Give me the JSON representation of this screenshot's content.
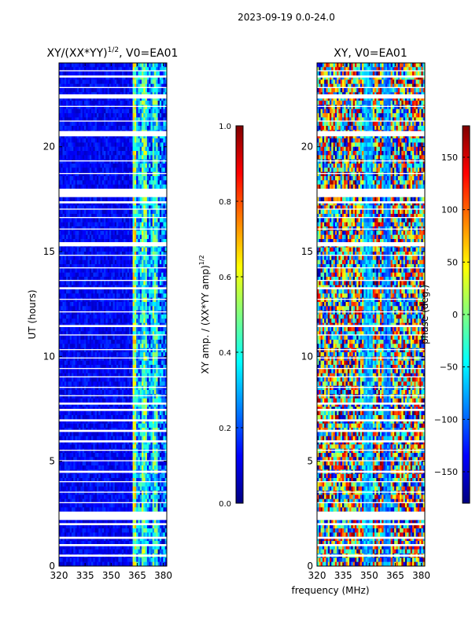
{
  "suptitle": "2023-09-19 0.0-24.0",
  "chart_data": [
    {
      "type": "heatmap",
      "title": "XY/(XX*YY)",
      "title_exp": "1/2",
      "title_suffix": ", V0=EA01",
      "xlabel": "",
      "ylabel": "UT (hours)",
      "xlim": [
        320,
        382
      ],
      "ylim": [
        0,
        24
      ],
      "xticks": [
        320,
        335,
        350,
        365,
        380
      ],
      "yticks": [
        0,
        5,
        10,
        15,
        20
      ],
      "colorbar": {
        "label": "XY amp. / (XX*YY amp)",
        "label_exp": "1/2",
        "range": [
          0.0,
          1.0
        ],
        "ticks": [
          "0.0",
          "0.2",
          "0.4",
          "0.6",
          "0.8",
          "1.0"
        ],
        "tick_values": [
          0.0,
          0.2,
          0.4,
          0.6,
          0.8,
          1.0
        ]
      },
      "flagged_time_gaps_hours": [
        [
          0.45,
          0.55
        ],
        [
          0.95,
          1.05
        ],
        [
          1.3,
          1.4
        ],
        [
          1.95,
          2.05
        ],
        [
          2.2,
          2.6
        ],
        [
          3.0,
          3.05
        ],
        [
          3.5,
          3.55
        ],
        [
          4.0,
          4.05
        ],
        [
          4.45,
          4.55
        ],
        [
          5.0,
          5.05
        ],
        [
          5.5,
          5.55
        ],
        [
          5.9,
          6.0
        ],
        [
          6.4,
          6.5
        ],
        [
          6.9,
          7.0
        ],
        [
          7.4,
          7.5
        ],
        [
          7.7,
          7.8
        ],
        [
          8.1,
          8.15
        ],
        [
          8.5,
          8.55
        ],
        [
          9.0,
          9.05
        ],
        [
          9.4,
          9.45
        ],
        [
          9.9,
          9.95
        ],
        [
          10.3,
          10.35
        ],
        [
          11.0,
          11.05
        ],
        [
          11.4,
          11.5
        ],
        [
          12.1,
          12.15
        ],
        [
          12.7,
          12.75
        ],
        [
          13.2,
          13.3
        ],
        [
          13.6,
          13.65
        ],
        [
          14.2,
          14.25
        ],
        [
          14.8,
          14.85
        ],
        [
          15.25,
          15.45
        ],
        [
          16.05,
          16.1
        ],
        [
          16.6,
          16.65
        ],
        [
          17.0,
          17.05
        ],
        [
          17.3,
          17.4
        ],
        [
          17.6,
          18.0
        ],
        [
          18.7,
          18.75
        ],
        [
          19.3,
          19.35
        ],
        [
          20.5,
          20.75
        ],
        [
          21.2,
          21.25
        ],
        [
          21.9,
          21.95
        ],
        [
          22.3,
          22.5
        ],
        [
          22.8,
          22.85
        ],
        [
          23.3,
          23.4
        ],
        [
          23.6,
          23.65
        ]
      ]
    },
    {
      "type": "heatmap",
      "title": "XY, V0=EA01",
      "xlabel": "frequency (MHz)",
      "ylabel": "",
      "xlim": [
        320,
        382
      ],
      "ylim": [
        0,
        24
      ],
      "xticks": [
        320,
        335,
        350,
        365,
        380
      ],
      "yticks": [
        0,
        5,
        10,
        15,
        20
      ],
      "colorbar": {
        "label": "phase (deg.)",
        "range": [
          -180,
          180
        ],
        "ticks": [
          "150",
          "100",
          "50",
          "0",
          "−50",
          "−100",
          "−150"
        ],
        "tick_values": [
          150,
          100,
          50,
          0,
          -50,
          -100,
          -150
        ]
      },
      "flagged_time_gaps_hours": [
        [
          0.45,
          0.55
        ],
        [
          0.95,
          1.05
        ],
        [
          1.3,
          1.4
        ],
        [
          1.95,
          2.05
        ],
        [
          2.2,
          2.6
        ],
        [
          3.0,
          3.05
        ],
        [
          3.5,
          3.55
        ],
        [
          4.0,
          4.05
        ],
        [
          4.45,
          4.55
        ],
        [
          5.0,
          5.05
        ],
        [
          5.5,
          5.55
        ],
        [
          5.9,
          6.0
        ],
        [
          6.4,
          6.5
        ],
        [
          6.9,
          7.0
        ],
        [
          7.4,
          7.5
        ],
        [
          7.7,
          7.8
        ],
        [
          8.1,
          8.15
        ],
        [
          8.5,
          8.55
        ],
        [
          9.0,
          9.05
        ],
        [
          9.4,
          9.45
        ],
        [
          9.9,
          9.95
        ],
        [
          10.3,
          10.35
        ],
        [
          11.0,
          11.05
        ],
        [
          11.4,
          11.5
        ],
        [
          12.1,
          12.15
        ],
        [
          12.7,
          12.75
        ],
        [
          13.2,
          13.3
        ],
        [
          13.6,
          13.65
        ],
        [
          14.2,
          14.25
        ],
        [
          14.8,
          14.85
        ],
        [
          15.25,
          15.45
        ],
        [
          16.05,
          16.1
        ],
        [
          16.6,
          16.65
        ],
        [
          17.0,
          17.05
        ],
        [
          17.3,
          17.4
        ],
        [
          17.6,
          18.0
        ],
        [
          18.7,
          18.75
        ],
        [
          19.3,
          19.35
        ],
        [
          20.5,
          20.75
        ],
        [
          21.2,
          21.25
        ],
        [
          21.9,
          21.95
        ],
        [
          22.3,
          22.5
        ],
        [
          22.8,
          22.85
        ],
        [
          23.3,
          23.4
        ],
        [
          23.6,
          23.65
        ]
      ]
    }
  ]
}
